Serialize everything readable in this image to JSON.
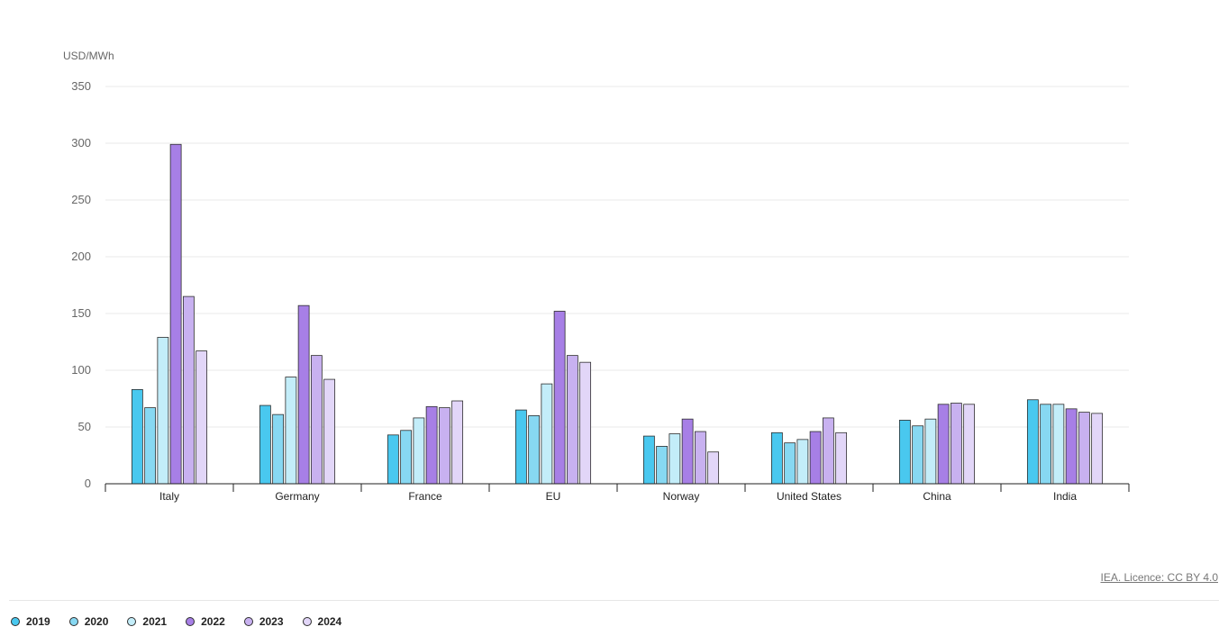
{
  "chart_data": {
    "type": "bar",
    "ylabel": "USD/MWh",
    "ylim": [
      0,
      350
    ],
    "yticks": [
      0,
      50,
      100,
      150,
      200,
      250,
      300,
      350
    ],
    "grid": true,
    "legend_position": "bottom-left",
    "categories": [
      "Italy",
      "Germany",
      "France",
      "EU",
      "Norway",
      "United States",
      "China",
      "India"
    ],
    "series": [
      {
        "name": "2019",
        "color": "#49c8ef",
        "values": [
          83,
          69,
          43,
          65,
          42,
          45,
          56,
          74
        ]
      },
      {
        "name": "2020",
        "color": "#87d8f2",
        "values": [
          67,
          61,
          47,
          60,
          33,
          36,
          51,
          70
        ]
      },
      {
        "name": "2021",
        "color": "#c3edf9",
        "values": [
          129,
          94,
          58,
          88,
          44,
          39,
          57,
          70
        ]
      },
      {
        "name": "2022",
        "color": "#a77fe6",
        "values": [
          299,
          157,
          68,
          152,
          57,
          46,
          70,
          66
        ]
      },
      {
        "name": "2023",
        "color": "#c8b1f0",
        "values": [
          165,
          113,
          67,
          113,
          46,
          58,
          71,
          63
        ]
      },
      {
        "name": "2024",
        "color": "#e2d6f8",
        "values": [
          117,
          92,
          73,
          107,
          28,
          45,
          70,
          62
        ]
      }
    ]
  },
  "credit": "IEA. Licence: CC BY 4.0"
}
